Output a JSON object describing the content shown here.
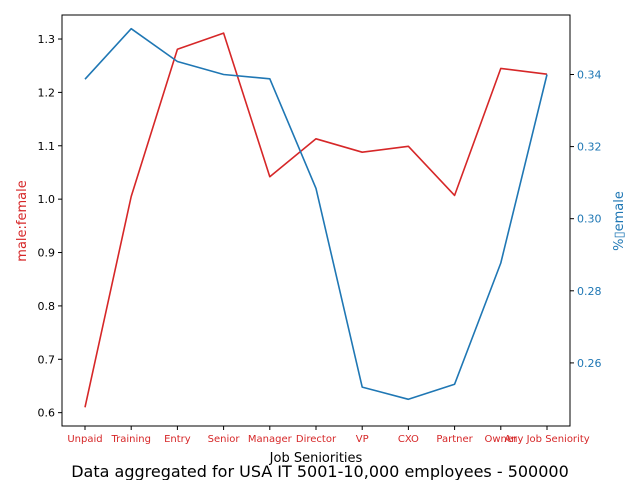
{
  "chart_data": {
    "type": "line",
    "xlabel": "Job Seniorities",
    "ylabel_left": "male:female",
    "ylabel_right": "%▯emale",
    "caption": "Data aggregated for USA IT 5001-10,000 employees - 500000",
    "categories": [
      "Unpaid",
      "Training",
      "Entry",
      "Senior",
      "Manager",
      "Director",
      "VP",
      "CXO",
      "Partner",
      "Owner",
      "Any Job Seniority"
    ],
    "ylim_left": [
      0.575,
      1.345
    ],
    "ylim_right": [
      0.2425,
      0.3565
    ],
    "yticks_left": [
      "0.6",
      "0.7",
      "0.8",
      "0.9",
      "1.0",
      "1.1",
      "1.2",
      "1.3"
    ],
    "yticks_right": [
      "0.26",
      "0.28",
      "0.30",
      "0.32",
      "0.34"
    ],
    "series": [
      {
        "name": "male:female",
        "axis": "left",
        "color": "#d62728",
        "values": [
          0.61,
          1.005,
          1.281,
          1.311,
          1.042,
          1.113,
          1.088,
          1.099,
          1.007,
          1.245,
          1.234
        ]
      },
      {
        "name": "% female",
        "axis": "right",
        "color": "#1f77b4",
        "values": [
          0.3387,
          0.3527,
          0.3436,
          0.34,
          0.3388,
          0.3084,
          0.2533,
          0.2499,
          0.2541,
          0.2877,
          0.34
        ]
      }
    ],
    "grid": false
  }
}
